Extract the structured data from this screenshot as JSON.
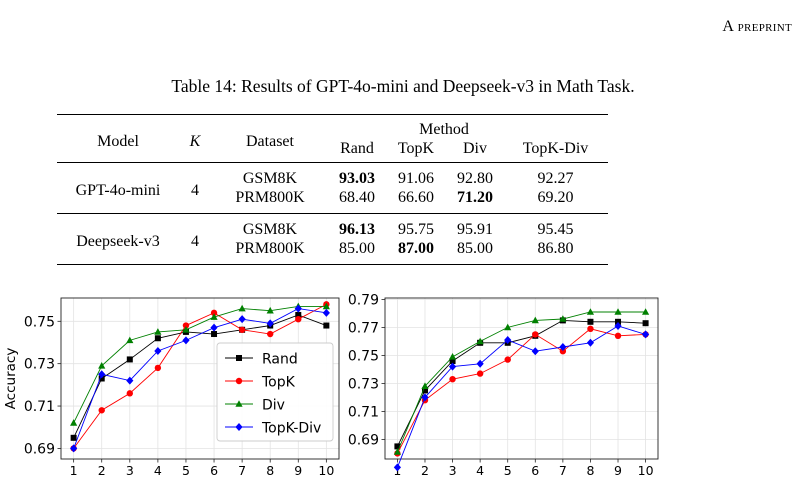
{
  "running_head": {
    "first": "A",
    "rest": "preprint"
  },
  "table": {
    "caption": "Table 14: Results of GPT-4o-mini and Deepseek-v3 in Math Task.",
    "headers": {
      "model": "Model",
      "k": "K",
      "dataset": "Dataset",
      "method": "Method",
      "rand": "Rand",
      "topk": "TopK",
      "div": "Div",
      "topkdiv": "TopK-Div"
    },
    "groups": [
      {
        "model": "GPT-4o-mini",
        "k": "4",
        "rows": [
          {
            "dataset": "GSM8K",
            "rand": "93.03",
            "topk": "91.06",
            "div": "92.80",
            "topkdiv": "92.27"
          },
          {
            "dataset": "PRM800K",
            "rand": "68.40",
            "topk": "66.60",
            "div": "71.20",
            "topkdiv": "69.20"
          }
        ]
      },
      {
        "model": "Deepseek-v3",
        "k": "4",
        "rows": [
          {
            "dataset": "GSM8K",
            "rand": "96.13",
            "topk": "95.75",
            "div": "95.91",
            "topkdiv": "95.45"
          },
          {
            "dataset": "PRM800K",
            "rand": "85.00",
            "topk": "87.00",
            "div": "85.00",
            "topkdiv": "86.80"
          }
        ]
      }
    ]
  },
  "chart_data": [
    {
      "type": "line",
      "ylabel": "Accuracy",
      "x": [
        1,
        2,
        3,
        4,
        5,
        6,
        7,
        8,
        9,
        10
      ],
      "xticks": [
        "1",
        "2",
        "3",
        "4",
        "5",
        "6",
        "7",
        "8",
        "9",
        "10"
      ],
      "ylim": [
        0.685,
        0.761
      ],
      "yticks": [
        "0.69",
        "0.71",
        "0.73",
        "0.75"
      ],
      "grid": true,
      "legend": "center-right",
      "series": [
        {
          "name": "Rand",
          "color": "#000000",
          "marker": "square",
          "values": [
            0.695,
            0.723,
            0.732,
            0.742,
            0.745,
            0.744,
            0.746,
            0.748,
            0.753,
            0.748
          ]
        },
        {
          "name": "TopK",
          "color": "#ff0000",
          "marker": "circle",
          "values": [
            0.69,
            0.708,
            0.716,
            0.728,
            0.748,
            0.754,
            0.746,
            0.744,
            0.751,
            0.758
          ]
        },
        {
          "name": "Div",
          "color": "#008000",
          "marker": "triangle",
          "values": [
            0.702,
            0.729,
            0.741,
            0.745,
            0.746,
            0.752,
            0.756,
            0.755,
            0.757,
            0.757
          ]
        },
        {
          "name": "TopK-Div",
          "color": "#0000ff",
          "marker": "diamond",
          "values": [
            0.69,
            0.725,
            0.722,
            0.736,
            0.741,
            0.747,
            0.751,
            0.749,
            0.756,
            0.754
          ]
        }
      ]
    },
    {
      "type": "line",
      "ylabel": "",
      "x": [
        1,
        2,
        3,
        4,
        5,
        6,
        7,
        8,
        9,
        10
      ],
      "xticks": [
        "1",
        "2",
        "3",
        "4",
        "5",
        "6",
        "7",
        "8",
        "9",
        "10"
      ],
      "ylim": [
        0.676,
        0.791
      ],
      "yticks": [
        "0.69",
        "0.71",
        "0.73",
        "0.75",
        "0.77",
        "0.79"
      ],
      "grid": true,
      "legend": "none",
      "series": [
        {
          "name": "Rand",
          "color": "#000000",
          "marker": "square",
          "values": [
            0.685,
            0.725,
            0.746,
            0.759,
            0.759,
            0.764,
            0.775,
            0.774,
            0.774,
            0.773
          ]
        },
        {
          "name": "TopK",
          "color": "#ff0000",
          "marker": "circle",
          "values": [
            0.68,
            0.718,
            0.733,
            0.737,
            0.747,
            0.765,
            0.753,
            0.769,
            0.764,
            0.765
          ]
        },
        {
          "name": "Div",
          "color": "#008000",
          "marker": "triangle",
          "values": [
            0.681,
            0.728,
            0.749,
            0.76,
            0.77,
            0.775,
            0.776,
            0.781,
            0.781,
            0.781
          ]
        },
        {
          "name": "TopK-Div",
          "color": "#0000ff",
          "marker": "diamond",
          "values": [
            0.67,
            0.72,
            0.742,
            0.744,
            0.761,
            0.753,
            0.756,
            0.759,
            0.771,
            0.765
          ]
        }
      ]
    }
  ]
}
